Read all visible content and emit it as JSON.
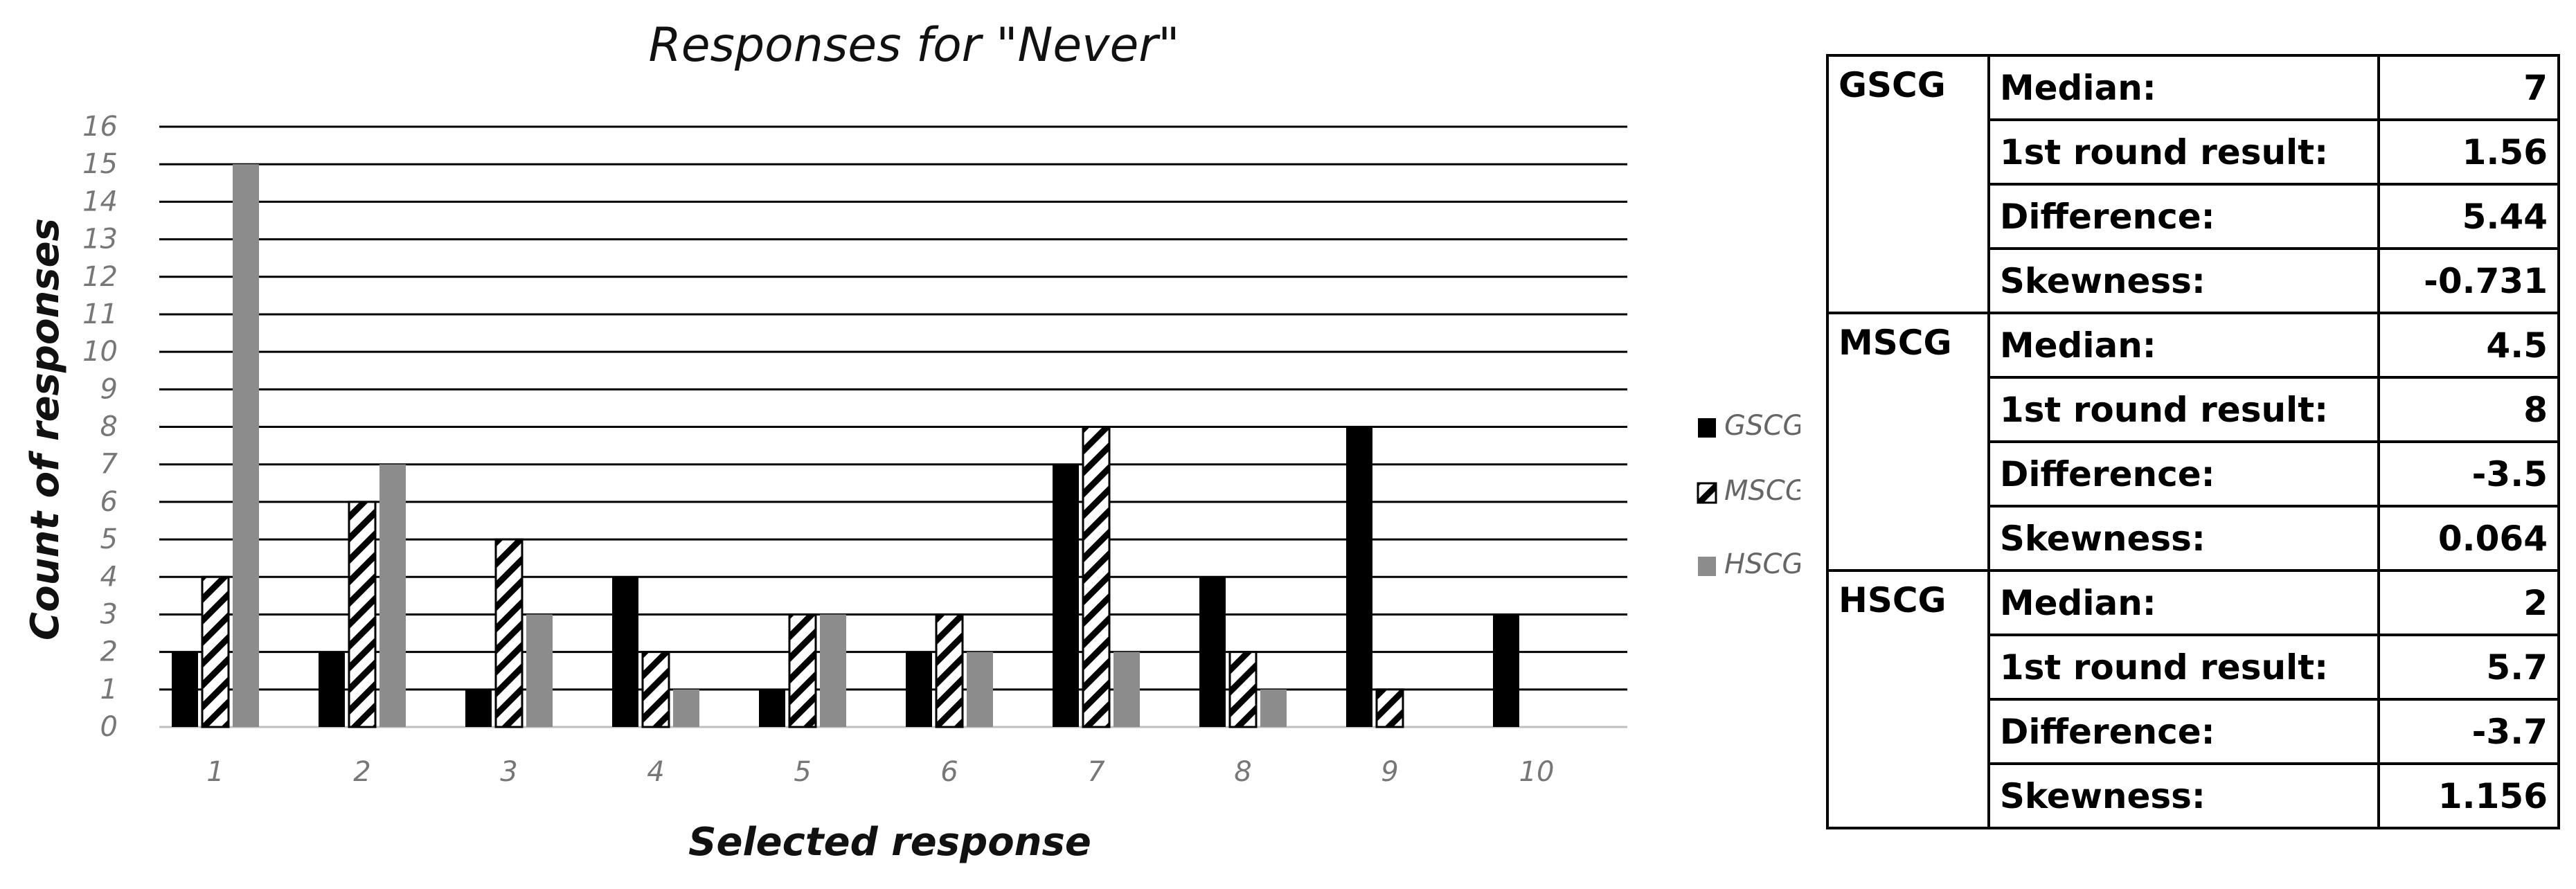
{
  "chart_data": {
    "type": "bar",
    "title": "Responses for \"Never\"",
    "xlabel": "Selected response",
    "ylabel": "Count of responses",
    "ylim": [
      0,
      16
    ],
    "yticks": [
      "0",
      "1",
      "2",
      "3",
      "4",
      "5",
      "6",
      "7",
      "8",
      "9",
      "10",
      "11",
      "12",
      "13",
      "14",
      "15",
      "16"
    ],
    "categories": [
      "1",
      "2",
      "3",
      "4",
      "5",
      "6",
      "7",
      "8",
      "9",
      "10"
    ],
    "grid": true,
    "legend_position": "right",
    "series": [
      {
        "name": "GSCG",
        "pattern": "solid",
        "color": "#000000",
        "values": [
          2,
          2,
          1,
          4,
          1,
          2,
          7,
          4,
          8,
          3
        ]
      },
      {
        "name": "MSCG",
        "pattern": "hatch",
        "color": "#000000",
        "values": [
          4,
          6,
          5,
          2,
          3,
          3,
          8,
          2,
          1,
          0
        ]
      },
      {
        "name": "HSCG",
        "pattern": "solid",
        "color": "#8c8c8c",
        "values": [
          15,
          7,
          3,
          1,
          3,
          2,
          2,
          1,
          0,
          0
        ]
      }
    ]
  },
  "stats_table": [
    {
      "group": "GSCG",
      "rows": [
        {
          "label": "Median:",
          "value": "7"
        },
        {
          "label": "1st round result:",
          "value": "1.56"
        },
        {
          "label": "Difference:",
          "value": "5.44"
        },
        {
          "label": "Skewness:",
          "value": "-0.731"
        }
      ]
    },
    {
      "group": "MSCG",
      "rows": [
        {
          "label": "Median:",
          "value": "4.5"
        },
        {
          "label": "1st round result:",
          "value": "8"
        },
        {
          "label": "Difference:",
          "value": "-3.5"
        },
        {
          "label": "Skewness:",
          "value": "0.064"
        }
      ]
    },
    {
      "group": "HSCG",
      "rows": [
        {
          "label": "Median:",
          "value": "2"
        },
        {
          "label": "1st round result:",
          "value": "5.7"
        },
        {
          "label": "Difference:",
          "value": "-3.7"
        },
        {
          "label": "Skewness:",
          "value": "1.156"
        }
      ]
    }
  ]
}
